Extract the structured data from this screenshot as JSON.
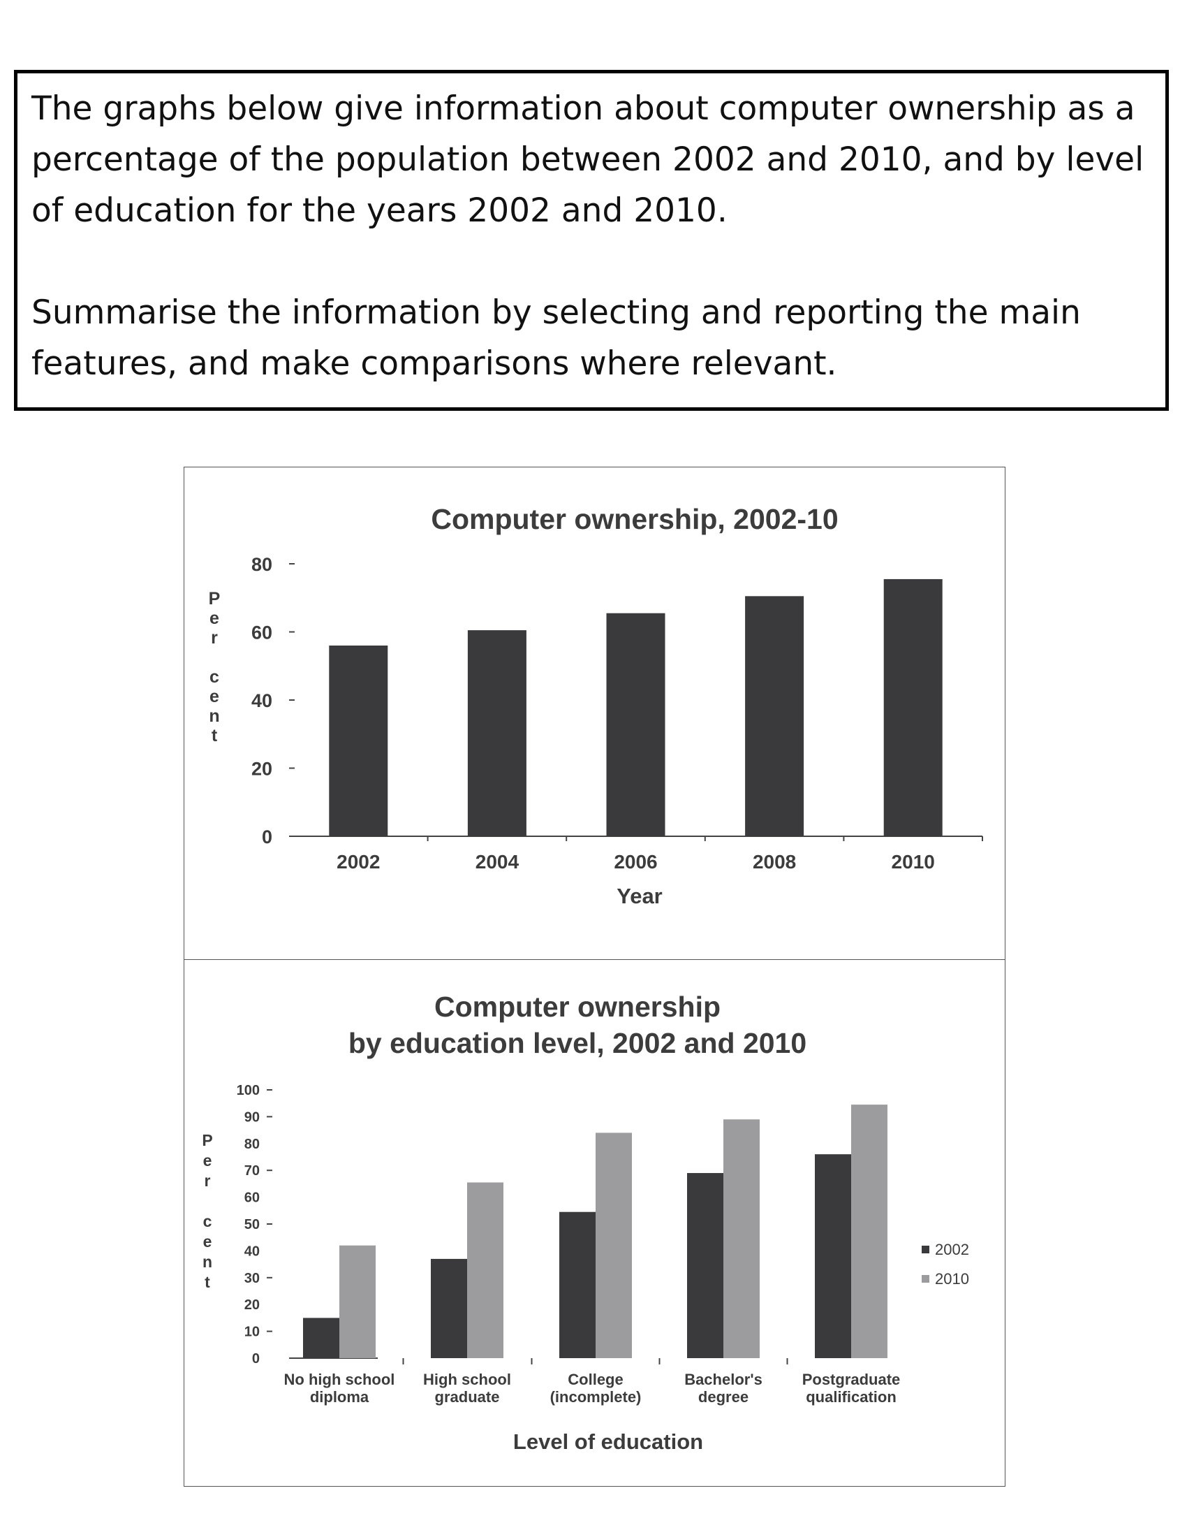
{
  "task": {
    "paragraph_1": "The graphs below give information about computer ownership as a percentage of the population between 2002 and 2010, and by level of education for the years 2002 and 2010.",
    "paragraph_2": "Summarise the information by selecting and reporting the main features, and make comparisons where relevant."
  },
  "colors": {
    "series_2002": "#3a3a3c",
    "series_2010": "#9c9c9e",
    "text": "#3c3c3c"
  },
  "chart_data": [
    {
      "type": "bar",
      "title": "Computer ownership, 2002-10",
      "xlabel": "Year",
      "ylabel": "Per cent",
      "ylim": [
        0,
        80
      ],
      "yticks": [
        0,
        20,
        40,
        60,
        80
      ],
      "categories": [
        "2002",
        "2004",
        "2006",
        "2008",
        "2010"
      ],
      "values": [
        56,
        60.5,
        65.5,
        70.5,
        75.5
      ],
      "grid": false,
      "legend": "none"
    },
    {
      "type": "bar",
      "title": [
        "Computer ownership",
        "by education level, 2002 and 2010"
      ],
      "xlabel": "Level of education",
      "ylabel": "Per cent",
      "ylim": [
        0,
        100
      ],
      "yticks": [
        0,
        10,
        20,
        30,
        40,
        50,
        60,
        70,
        80,
        90,
        100
      ],
      "categories": [
        [
          "No high school",
          "diploma"
        ],
        [
          "High school",
          "graduate"
        ],
        [
          "College",
          "(incomplete)"
        ],
        [
          "Bachelor's",
          "degree"
        ],
        [
          "Postgraduate",
          "qualification"
        ]
      ],
      "series": [
        {
          "name": "2002",
          "values": [
            15,
            37,
            54.5,
            69,
            76
          ]
        },
        {
          "name": "2010",
          "values": [
            42,
            65.5,
            84,
            89,
            94.5
          ]
        }
      ],
      "grid": false,
      "legend": "right"
    }
  ]
}
